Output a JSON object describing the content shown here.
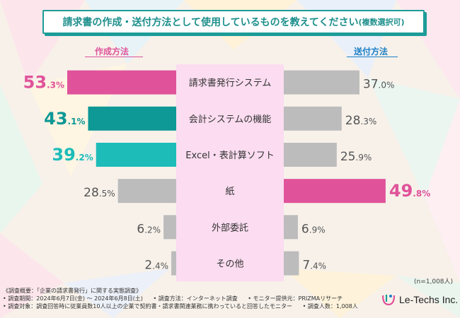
{
  "title": {
    "main": "請求書の作成・送付方法として使用しているものを教えてください",
    "sub": "(複数選択可)"
  },
  "colors": {
    "left_highlight": "#e0539a",
    "left_second": "#0e9896",
    "left_third": "#1dbcb9",
    "right_highlight": "#e0539a",
    "default_bar": "#bcbcbc",
    "center_panel": "#fbdcf0",
    "title_accent": "#1d9c98"
  },
  "chart_data": {
    "type": "bar",
    "layout": "butterfly",
    "title": "請求書の作成・送付方法として使用しているものを教えてください(複数選択可)",
    "left_series_name": "作成方法",
    "right_series_name": "送付方法",
    "categories": [
      "請求書発行システム",
      "会計システムの機能",
      "Excel・表計算ソフト",
      "紙",
      "外部委託",
      "その他"
    ],
    "series": [
      {
        "name": "作成方法",
        "values": [
          53.3,
          43.1,
          39.2,
          28.5,
          6.2,
          2.4
        ]
      },
      {
        "name": "送付方法",
        "values": [
          37.0,
          28.3,
          25.9,
          49.8,
          6.9,
          7.4
        ]
      }
    ],
    "left_display": [
      {
        "int": "53",
        "dec": ".3%"
      },
      {
        "int": "43",
        "dec": ".1%"
      },
      {
        "int": "39",
        "dec": ".2%"
      },
      {
        "int": "28",
        "dec": ".5%"
      },
      {
        "int": "6",
        "dec": ".2%"
      },
      {
        "int": "2",
        "dec": ".4%"
      }
    ],
    "right_display": [
      {
        "int": "37",
        "dec": ".0%"
      },
      {
        "int": "28",
        "dec": ".3%"
      },
      {
        "int": "25",
        "dec": ".9%"
      },
      {
        "int": "49",
        "dec": ".8%"
      },
      {
        "int": "6",
        "dec": ".9%"
      },
      {
        "int": "7",
        "dec": ".4%"
      }
    ],
    "left_highlight_rank": [
      "first",
      "second",
      "third",
      "",
      "",
      ""
    ],
    "right_highlight_rank": [
      "",
      "",
      "",
      "first",
      "",
      ""
    ],
    "xlim": [
      0,
      60
    ]
  },
  "sample_note": "(n=1,008人)",
  "footer": {
    "line1": "《調査概要：「企業の請求書発行」に関する実態調査》",
    "line2a": "• 調査期間：2024年6月7日(金) 〜 2024年6月8日(土)",
    "line2b": "• 調査方法：インターネット調査",
    "line2c": "• モニター提供元：PRIZMAリサーチ",
    "line3a": "• 調査対象：調査回答時に従業員数10人以上の企業で契約書・請求書関連業務に携わっていると回答したモニター",
    "line3b": "• 調査人数：1,008人"
  },
  "logo": {
    "text": "Le-Techs Inc."
  }
}
